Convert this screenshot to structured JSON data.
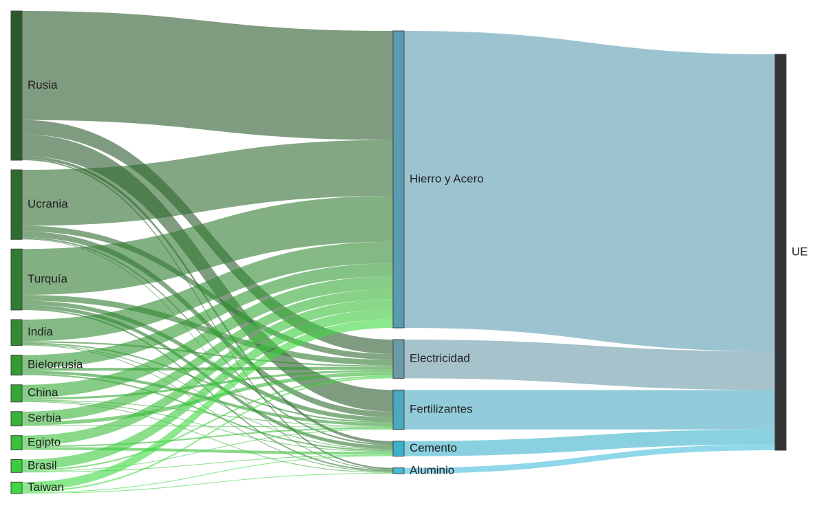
{
  "chart_data": {
    "type": "sankey",
    "nodes": [
      {
        "label": "Rusia",
        "color": "#2b5a2b"
      },
      {
        "label": "Ucrania",
        "color": "#2e6c2e"
      },
      {
        "label": "Turquía",
        "color": "#307c30"
      },
      {
        "label": "India",
        "color": "#328b32"
      },
      {
        "label": "Bielorrusia",
        "color": "#349a34"
      },
      {
        "label": "China",
        "color": "#36a836"
      },
      {
        "label": "Serbia",
        "color": "#38b438"
      },
      {
        "label": "Egipto",
        "color": "#3ac03a"
      },
      {
        "label": "Brasil",
        "color": "#3ccc3c"
      },
      {
        "label": "Taiwan",
        "color": "#40d840"
      },
      {
        "label": "Hierro y Acero",
        "color": "#5a9cb0"
      },
      {
        "label": "Electricidad",
        "color": "#6a9aa8"
      },
      {
        "label": "Fertilizantes",
        "color": "#4aa8c0"
      },
      {
        "label": "Cemento",
        "color": "#3ab2cc"
      },
      {
        "label": "Aluminio",
        "color": "#44bcdc"
      },
      {
        "label": "UE",
        "color": "#333333"
      }
    ],
    "links": [
      {
        "source": 0,
        "target": 10,
        "value": 152
      },
      {
        "source": 0,
        "target": 11,
        "value": 20
      },
      {
        "source": 0,
        "target": 12,
        "value": 30
      },
      {
        "source": 0,
        "target": 13,
        "value": 4
      },
      {
        "source": 0,
        "target": 14,
        "value": 2
      },
      {
        "source": 1,
        "target": 10,
        "value": 78
      },
      {
        "source": 1,
        "target": 11,
        "value": 8
      },
      {
        "source": 1,
        "target": 12,
        "value": 8
      },
      {
        "source": 1,
        "target": 13,
        "value": 2
      },
      {
        "source": 1,
        "target": 14,
        "value": 1
      },
      {
        "source": 2,
        "target": 10,
        "value": 64
      },
      {
        "source": 2,
        "target": 11,
        "value": 8
      },
      {
        "source": 2,
        "target": 12,
        "value": 6
      },
      {
        "source": 2,
        "target": 13,
        "value": 5
      },
      {
        "source": 2,
        "target": 14,
        "value": 2
      },
      {
        "source": 3,
        "target": 10,
        "value": 30
      },
      {
        "source": 3,
        "target": 11,
        "value": 2
      },
      {
        "source": 3,
        "target": 12,
        "value": 2
      },
      {
        "source": 3,
        "target": 13,
        "value": 1
      },
      {
        "source": 3,
        "target": 14,
        "value": 1
      },
      {
        "source": 4,
        "target": 10,
        "value": 18
      },
      {
        "source": 4,
        "target": 11,
        "value": 4
      },
      {
        "source": 4,
        "target": 12,
        "value": 4
      },
      {
        "source": 4,
        "target": 13,
        "value": 2
      },
      {
        "source": 5,
        "target": 10,
        "value": 18
      },
      {
        "source": 5,
        "target": 11,
        "value": 3
      },
      {
        "source": 5,
        "target": 12,
        "value": 1
      },
      {
        "source": 5,
        "target": 13,
        "value": 1
      },
      {
        "source": 5,
        "target": 14,
        "value": 1
      },
      {
        "source": 6,
        "target": 10,
        "value": 14
      },
      {
        "source": 6,
        "target": 11,
        "value": 5
      },
      {
        "source": 6,
        "target": 12,
        "value": 1
      },
      {
        "source": 7,
        "target": 10,
        "value": 14
      },
      {
        "source": 7,
        "target": 12,
        "value": 2
      },
      {
        "source": 7,
        "target": 13,
        "value": 4
      },
      {
        "source": 8,
        "target": 10,
        "value": 14
      },
      {
        "source": 8,
        "target": 11,
        "value": 2
      },
      {
        "source": 8,
        "target": 12,
        "value": 1
      },
      {
        "source": 8,
        "target": 13,
        "value": 1
      },
      {
        "source": 9,
        "target": 10,
        "value": 12
      },
      {
        "source": 9,
        "target": 11,
        "value": 2
      },
      {
        "source": 9,
        "target": 13,
        "value": 1
      },
      {
        "source": 9,
        "target": 14,
        "value": 1
      },
      {
        "source": 10,
        "target": 15,
        "value": 414
      },
      {
        "source": 11,
        "target": 15,
        "value": 54
      },
      {
        "source": 12,
        "target": 15,
        "value": 55
      },
      {
        "source": 13,
        "target": 15,
        "value": 21
      },
      {
        "source": 14,
        "target": 15,
        "value": 8
      }
    ]
  }
}
